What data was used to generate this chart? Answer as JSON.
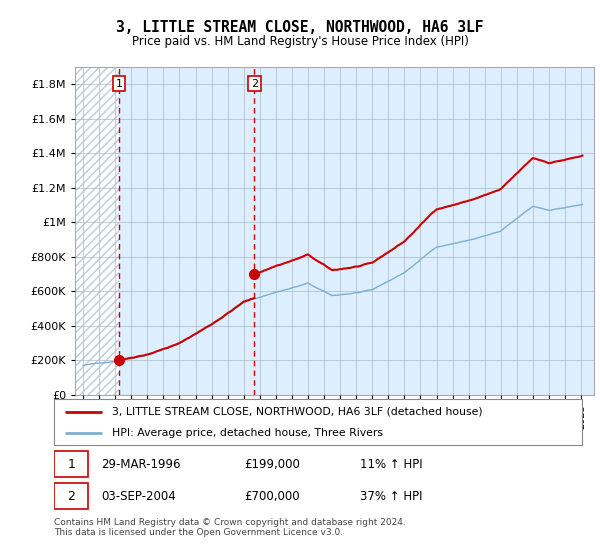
{
  "title": "3, LITTLE STREAM CLOSE, NORTHWOOD, HA6 3LF",
  "subtitle": "Price paid vs. HM Land Registry's House Price Index (HPI)",
  "legend_line1": "3, LITTLE STREAM CLOSE, NORTHWOOD, HA6 3LF (detached house)",
  "legend_line2": "HPI: Average price, detached house, Three Rivers",
  "sale1_date": "29-MAR-1996",
  "sale1_price": "£199,000",
  "sale1_hpi": "11% ↑ HPI",
  "sale2_date": "03-SEP-2004",
  "sale2_price": "£700,000",
  "sale2_hpi": "37% ↑ HPI",
  "footnote": "Contains HM Land Registry data © Crown copyright and database right 2024.\nThis data is licensed under the Open Government Licence v3.0.",
  "sale1_year": 1996.23,
  "sale1_value": 199000,
  "sale2_year": 2004.67,
  "sale2_value": 700000,
  "line_color_price": "#cc0000",
  "line_color_hpi": "#7bafd4",
  "dot_color": "#cc0000",
  "vline_color": "#cc0000",
  "bg_color": "#ddeeff",
  "hatch_bg": "white",
  "hatch_edgecolor": "#bbccdd",
  "ylim": [
    0,
    1900000
  ],
  "xlim_start": 1993.5,
  "xlim_end": 2025.8,
  "yticks": [
    0,
    200000,
    400000,
    600000,
    800000,
    1000000,
    1200000,
    1400000,
    1600000,
    1800000
  ]
}
